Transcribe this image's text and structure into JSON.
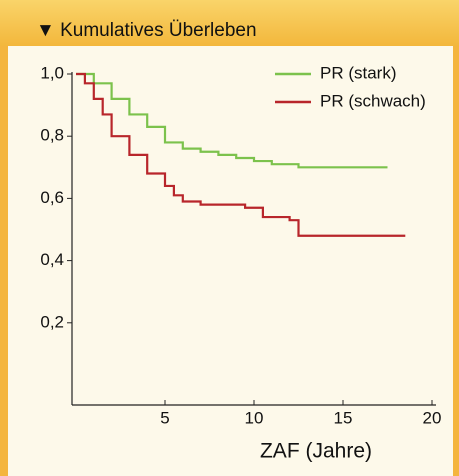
{
  "header": {
    "title": "▼ Kumulatives Überleben"
  },
  "chart_data": {
    "type": "line",
    "step": true,
    "xlabel": "ZAF (Jahre)",
    "xlim": [
      0,
      20
    ],
    "xticks": [
      5,
      10,
      15,
      20
    ],
    "ylim": [
      0,
      1
    ],
    "yticks": [
      {
        "value": 1,
        "label": "1,0"
      },
      {
        "value": 0.8,
        "label": "0,8"
      },
      {
        "value": 0.6,
        "label": "0,6"
      },
      {
        "value": 0.4,
        "label": "0,4"
      },
      {
        "value": 0.2,
        "label": "0,2"
      }
    ],
    "legend": "upper right",
    "series": [
      {
        "name": "PR (stark)",
        "color": "#7cc24c",
        "x": [
          0,
          1,
          2,
          3,
          4,
          5,
          6,
          7,
          8,
          9,
          10,
          11,
          12.5,
          17.5
        ],
        "values": [
          1,
          0.97,
          0.92,
          0.87,
          0.83,
          0.78,
          0.76,
          0.75,
          0.74,
          0.73,
          0.72,
          0.71,
          0.7,
          0.7
        ]
      },
      {
        "name": "PR (schwach)",
        "color": "#b8262b",
        "x": [
          0,
          0.5,
          1,
          1.5,
          2,
          3,
          4,
          5,
          5.5,
          6,
          7,
          9.5,
          10.5,
          12,
          12.5,
          18.5
        ],
        "values": [
          1,
          0.97,
          0.92,
          0.87,
          0.8,
          0.74,
          0.68,
          0.64,
          0.61,
          0.59,
          0.58,
          0.57,
          0.54,
          0.53,
          0.48,
          0.48
        ]
      }
    ]
  }
}
